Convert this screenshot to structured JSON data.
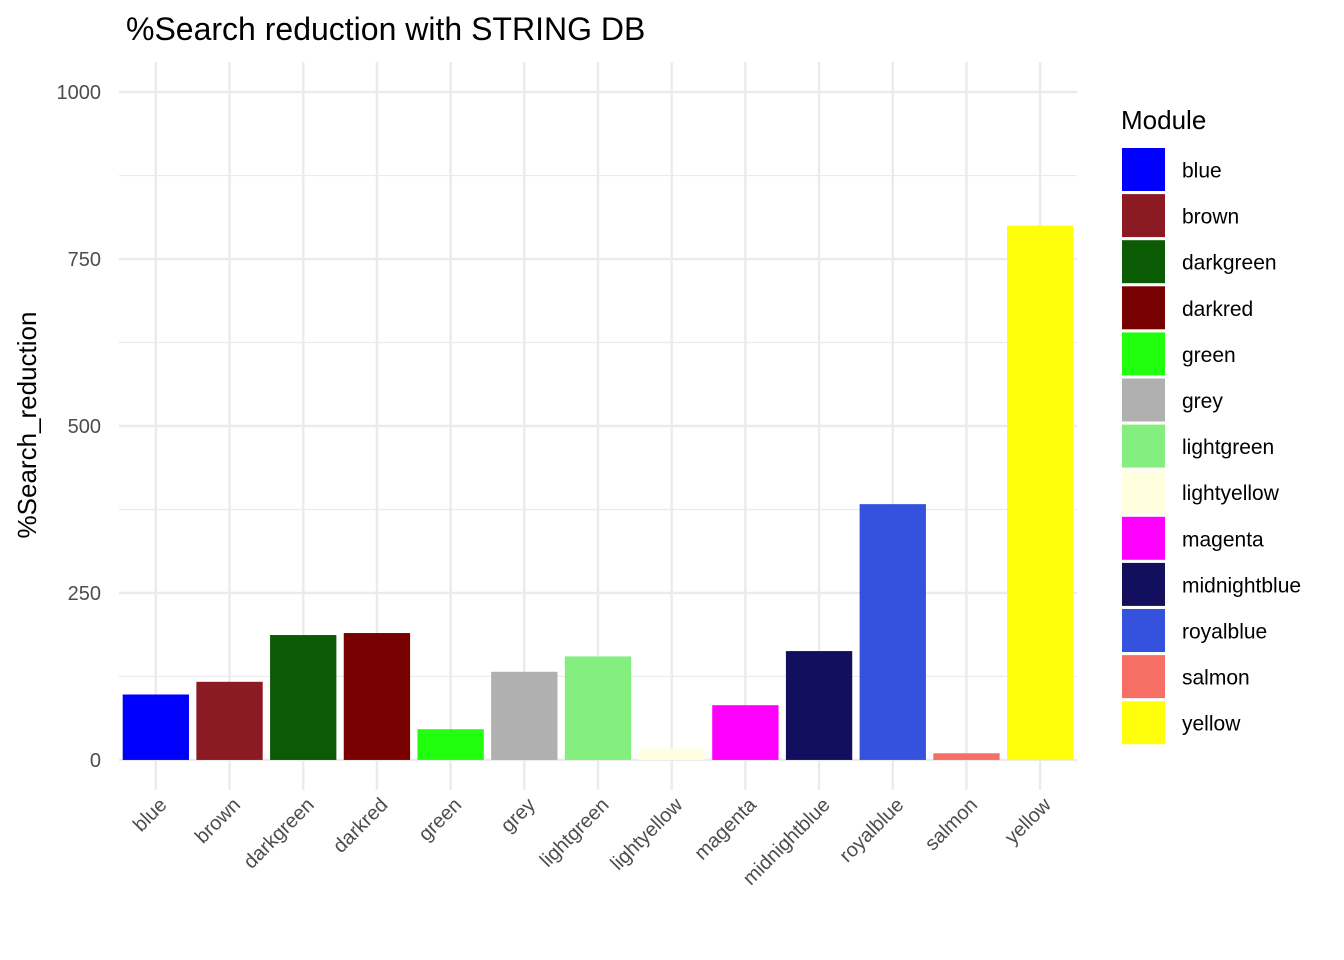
{
  "chart_data": {
    "type": "bar",
    "title": "%Search reduction with STRING DB",
    "xlabel": "",
    "ylabel": "%Search_reduction",
    "ylim": [
      -45,
      1045
    ],
    "yticks": [
      0,
      250,
      500,
      750,
      1000
    ],
    "grid": true,
    "legend_title": "Module",
    "legend_position": "right",
    "categories": [
      "blue",
      "brown",
      "darkgreen",
      "darkred",
      "green",
      "grey",
      "lightgreen",
      "lightyellow",
      "magenta",
      "midnightblue",
      "royalblue",
      "salmon",
      "yellow"
    ],
    "values": [
      98,
      117,
      187,
      190,
      46,
      132,
      155,
      17,
      82,
      163,
      383,
      10,
      800
    ],
    "colors": [
      "#0000FF",
      "#8B1A22",
      "#0B5A04",
      "#780000",
      "#22FF0E",
      "#B0B0B0",
      "#84EE7E",
      "#FFFFE0",
      "#FF00FF",
      "#12105E",
      "#3452DE",
      "#F76E64",
      "#FFFF0C"
    ]
  }
}
